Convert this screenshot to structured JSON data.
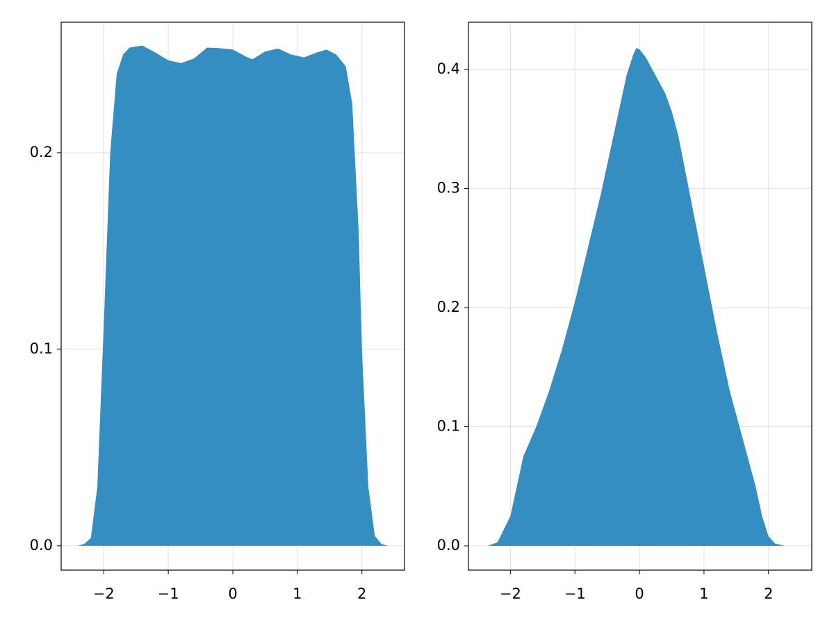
{
  "chart_data": [
    {
      "type": "area",
      "color": "#348ec1",
      "grid": true,
      "x": [
        -2.4,
        -2.3,
        -2.2,
        -2.1,
        -2.0,
        -1.9,
        -1.8,
        -1.7,
        -1.6,
        -1.4,
        -1.2,
        -1.0,
        -0.8,
        -0.6,
        -0.4,
        -0.2,
        0.0,
        0.2,
        0.3,
        0.5,
        0.7,
        0.9,
        1.1,
        1.3,
        1.45,
        1.6,
        1.75,
        1.85,
        1.95,
        2.0,
        2.1,
        2.2,
        2.3,
        2.4
      ],
      "values": [
        0.0,
        0.001,
        0.004,
        0.03,
        0.112,
        0.2,
        0.24,
        0.25,
        0.2535,
        0.2545,
        0.251,
        0.247,
        0.2456,
        0.248,
        0.2535,
        0.2532,
        0.2525,
        0.249,
        0.2475,
        0.2515,
        0.253,
        0.25,
        0.2485,
        0.251,
        0.2525,
        0.25,
        0.244,
        0.225,
        0.16,
        0.1,
        0.03,
        0.005,
        0.001,
        0.0
      ],
      "xlim": [
        -2.66,
        2.66
      ],
      "ylim": [
        -0.0124,
        0.2664
      ],
      "xticks": [
        {
          "value": -2,
          "label": "−2"
        },
        {
          "value": -1,
          "label": "−1"
        },
        0,
        1,
        2
      ],
      "yticks": [
        {
          "value": 0,
          "label": "0.0"
        },
        0.1,
        0.2
      ]
    },
    {
      "type": "area",
      "color": "#348ec1",
      "grid": true,
      "x": [
        -2.35,
        -2.2,
        -2.0,
        -1.9,
        -1.8,
        -1.6,
        -1.4,
        -1.2,
        -1.0,
        -0.8,
        -0.6,
        -0.4,
        -0.3,
        -0.2,
        -0.1,
        -0.05,
        0.0,
        0.1,
        0.2,
        0.4,
        0.5,
        0.6,
        0.8,
        1.0,
        1.2,
        1.4,
        1.6,
        1.8,
        1.9,
        2.0,
        2.1,
        2.25
      ],
      "values": [
        0.0,
        0.003,
        0.025,
        0.05,
        0.075,
        0.1,
        0.13,
        0.165,
        0.205,
        0.25,
        0.295,
        0.345,
        0.37,
        0.395,
        0.412,
        0.418,
        0.417,
        0.41,
        0.4,
        0.38,
        0.365,
        0.345,
        0.29,
        0.235,
        0.18,
        0.13,
        0.09,
        0.05,
        0.025,
        0.008,
        0.002,
        0.0
      ],
      "xlim": [
        -2.65,
        2.67
      ],
      "ylim": [
        -0.0204,
        0.4397
      ],
      "xticks": [
        {
          "value": -2,
          "label": "−2"
        },
        {
          "value": -1,
          "label": "−1"
        },
        0,
        1,
        2
      ],
      "yticks": [
        {
          "value": 0,
          "label": "0.0"
        },
        0.1,
        0.2,
        0.3,
        0.4
      ]
    }
  ]
}
